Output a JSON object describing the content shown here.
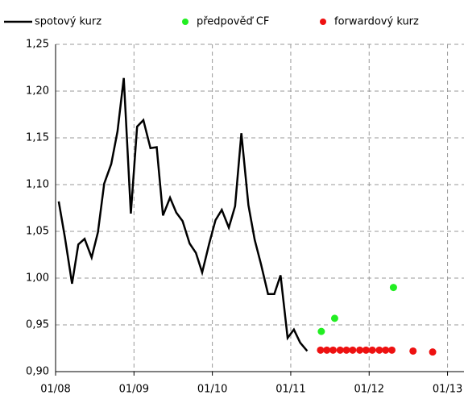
{
  "chart_data": {
    "type": "line",
    "xlim": [
      2008,
      2013.21
    ],
    "xticks": [
      {
        "value": 2008,
        "label": "01/08"
      },
      {
        "value": 2009,
        "label": "01/09"
      },
      {
        "value": 2010,
        "label": "01/10"
      },
      {
        "value": 2011,
        "label": "01/11"
      },
      {
        "value": 2012,
        "label": "01/12"
      },
      {
        "value": 2013,
        "label": "01/13"
      }
    ],
    "ylim": [
      0.9,
      1.25
    ],
    "yticks": [
      {
        "value": 0.9,
        "label": "0,90"
      },
      {
        "value": 0.95,
        "label": "0,95"
      },
      {
        "value": 1.0,
        "label": "1,00"
      },
      {
        "value": 1.05,
        "label": "1,05"
      },
      {
        "value": 1.1,
        "label": "1,10"
      },
      {
        "value": 1.15,
        "label": "1,15"
      },
      {
        "value": 1.2,
        "label": "1,20"
      },
      {
        "value": 1.25,
        "label": "1,25"
      }
    ],
    "grid": true,
    "legend": "top",
    "series": [
      {
        "name": "spotový kurz",
        "color": "#000000",
        "style": "line",
        "x": [
          2008.04,
          2008.12,
          2008.21,
          2008.29,
          2008.37,
          2008.46,
          2008.54,
          2008.62,
          2008.71,
          2008.79,
          2008.87,
          2008.96,
          2009.04,
          2009.12,
          2009.21,
          2009.29,
          2009.37,
          2009.46,
          2009.54,
          2009.62,
          2009.71,
          2009.79,
          2009.87,
          2009.96,
          2010.04,
          2010.12,
          2010.21,
          2010.29,
          2010.37,
          2010.46,
          2010.54,
          2010.62,
          2010.71,
          2010.79,
          2010.87,
          2010.96,
          2011.04,
          2011.12,
          2011.21
        ],
        "values": [
          1.082,
          1.043,
          0.994,
          1.036,
          1.042,
          1.022,
          1.049,
          1.101,
          1.122,
          1.157,
          1.214,
          1.069,
          1.162,
          1.169,
          1.139,
          1.14,
          1.067,
          1.086,
          1.07,
          1.061,
          1.037,
          1.027,
          1.006,
          1.037,
          1.062,
          1.073,
          1.054,
          1.077,
          1.155,
          1.078,
          1.041,
          1.015,
          0.983,
          0.983,
          1.003,
          0.936,
          0.945,
          0.931,
          0.922
        ]
      },
      {
        "name": "předpověď CF",
        "color": "#22ee22",
        "style": "markers",
        "x": [
          2011.39,
          2011.56,
          2012.31
        ],
        "values": [
          0.943,
          0.957,
          0.99
        ]
      },
      {
        "name": "forwardový kurz",
        "color": "#ee1111",
        "style": "markers",
        "x": [
          2011.38,
          2011.46,
          2011.54,
          2011.63,
          2011.71,
          2011.79,
          2011.88,
          2011.96,
          2012.04,
          2012.13,
          2012.21,
          2012.29,
          2012.56,
          2012.81
        ],
        "values": [
          0.923,
          0.923,
          0.923,
          0.923,
          0.923,
          0.923,
          0.923,
          0.923,
          0.923,
          0.923,
          0.923,
          0.923,
          0.922,
          0.921
        ]
      }
    ]
  }
}
